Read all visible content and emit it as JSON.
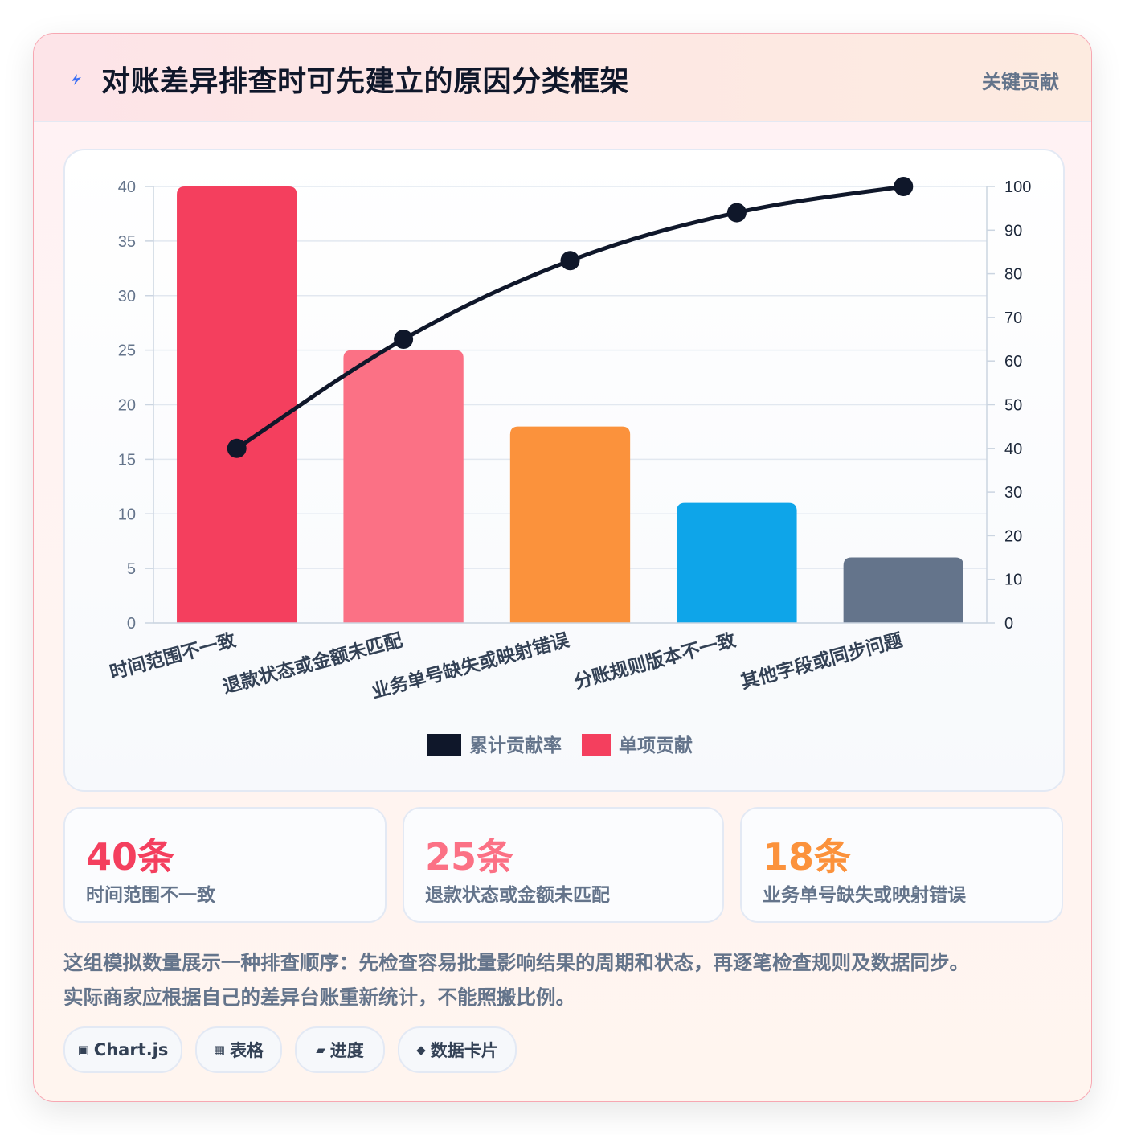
{
  "header": {
    "title": "对账差异排查时可先建立的原因分类框架",
    "badge": "关键贡献"
  },
  "chart_data": {
    "type": "bar",
    "categories": [
      "时间范围不一致",
      "退款状态或金额未匹配",
      "业务单号缺失或映射错误",
      "分账规则版本不一致",
      "其他字段或同步问题"
    ],
    "series": [
      {
        "name": "单项贡献",
        "type": "bar",
        "axis": "left",
        "values": [
          40,
          25,
          18,
          11,
          6
        ]
      },
      {
        "name": "累计贡献率",
        "type": "line",
        "axis": "right",
        "values": [
          40,
          65,
          83,
          94,
          100
        ]
      }
    ],
    "bar_colors": [
      "#f43f5e",
      "#fb7185",
      "#fb923c",
      "#0ea5e9",
      "#64748b"
    ],
    "line_color": "#0f172a",
    "ylim_left": [
      0,
      40
    ],
    "ylim_right": [
      0,
      100
    ],
    "yticks_left": [
      "0",
      "5",
      "10",
      "15",
      "20",
      "25",
      "30",
      "35",
      "40"
    ],
    "yticks_right": [
      "0",
      "10",
      "20",
      "30",
      "40",
      "50",
      "60",
      "70",
      "80",
      "90",
      "100"
    ],
    "legend": [
      {
        "label": "累计贡献率",
        "color": "#0f172a"
      },
      {
        "label": "单项贡献",
        "color": "#f43f5e"
      }
    ],
    "legend_position": "bottom",
    "grid": true
  },
  "stats": [
    {
      "value": "40条",
      "label": "时间范围不一致",
      "color": "#f43f5e"
    },
    {
      "value": "25条",
      "label": "退款状态或金额未匹配",
      "color": "#fb7185"
    },
    {
      "value": "18条",
      "label": "业务单号缺失或映射错误",
      "color": "#fb923c"
    }
  ],
  "note": {
    "line1": "这组模拟数量展示一种排查顺序：先检查容易批量影响结果的周期和状态，再逐笔检查规则及数据同步。",
    "line2": "实际商家应根据自己的差异台账重新统计，不能照搬比例。"
  },
  "chips": [
    {
      "icon": "▣",
      "icon_name": "chart-icon",
      "label": "Chart.js"
    },
    {
      "icon": "▦",
      "icon_name": "table-icon",
      "label": "表格"
    },
    {
      "icon": "▰",
      "icon_name": "progress-icon",
      "label": "进度"
    },
    {
      "icon": "◆",
      "icon_name": "card-icon",
      "label": "数据卡片"
    }
  ]
}
